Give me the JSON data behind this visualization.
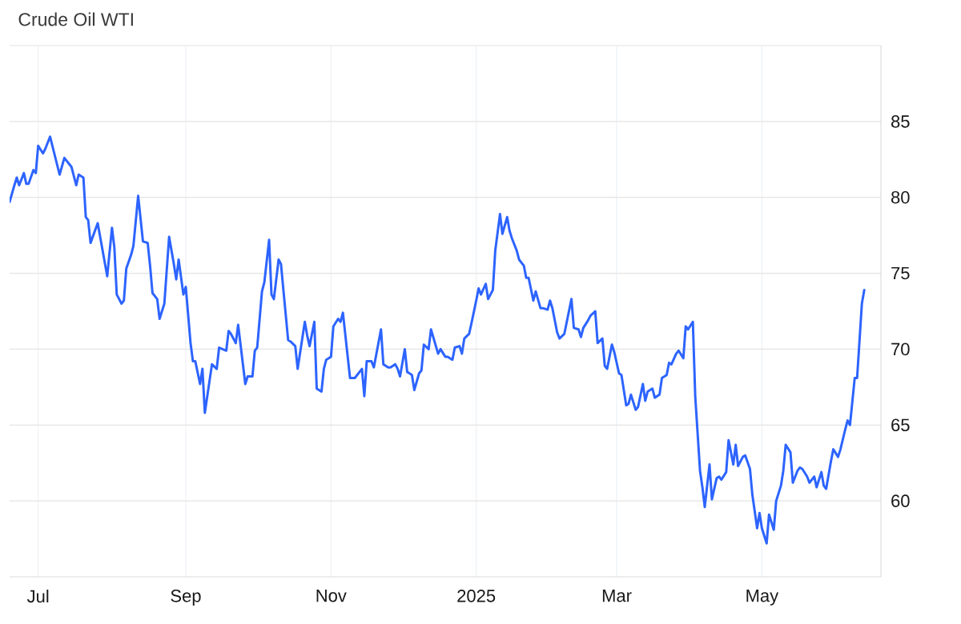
{
  "chart_data": {
    "type": "line",
    "title": "Crude Oil WTI",
    "x": [
      "2024-06-19",
      "2024-06-21",
      "2024-06-22",
      "2024-06-23",
      "2024-06-25",
      "2024-06-26",
      "2024-06-27",
      "2024-06-29",
      "2024-06-30",
      "2024-07-01",
      "2024-07-03",
      "2024-07-04",
      "2024-07-06",
      "2024-07-10",
      "2024-07-12",
      "2024-07-15",
      "2024-07-17",
      "2024-07-18",
      "2024-07-20",
      "2024-07-21",
      "2024-07-22",
      "2024-07-23",
      "2024-07-26",
      "2024-07-30",
      "2024-08-01",
      "2024-08-02",
      "2024-08-03",
      "2024-08-05",
      "2024-08-06",
      "2024-08-07",
      "2024-08-09",
      "2024-08-10",
      "2024-08-12",
      "2024-08-14",
      "2024-08-16",
      "2024-08-17",
      "2024-08-18",
      "2024-08-20",
      "2024-08-21",
      "2024-08-23",
      "2024-08-25",
      "2024-08-27",
      "2024-08-28",
      "2024-08-29",
      "2024-08-31",
      "2024-09-01",
      "2024-09-03",
      "2024-09-04",
      "2024-09-05",
      "2024-09-07",
      "2024-09-08",
      "2024-09-09",
      "2024-09-12",
      "2024-09-14",
      "2024-09-15",
      "2024-09-18",
      "2024-09-19",
      "2024-09-20",
      "2024-09-22",
      "2024-09-23",
      "2024-09-26",
      "2024-09-27",
      "2024-09-29",
      "2024-09-30",
      "2024-10-01",
      "2024-10-03",
      "2024-10-04",
      "2024-10-06",
      "2024-10-07",
      "2024-10-08",
      "2024-10-10",
      "2024-10-11",
      "2024-10-12",
      "2024-10-14",
      "2024-10-15",
      "2024-10-17",
      "2024-10-18",
      "2024-10-21",
      "2024-10-22",
      "2024-10-23",
      "2024-10-25",
      "2024-10-26",
      "2024-10-28",
      "2024-10-29",
      "2024-10-30",
      "2024-11-01",
      "2024-11-02",
      "2024-11-04",
      "2024-11-05",
      "2024-11-06",
      "2024-11-09",
      "2024-11-11",
      "2024-11-14",
      "2024-11-15",
      "2024-11-16",
      "2024-11-18",
      "2024-11-19",
      "2024-11-22",
      "2024-11-23",
      "2024-11-25",
      "2024-11-26",
      "2024-11-28",
      "2024-11-29",
      "2024-11-30",
      "2024-12-02",
      "2024-12-03",
      "2024-12-05",
      "2024-12-06",
      "2024-12-08",
      "2024-12-09",
      "2024-12-10",
      "2024-12-12",
      "2024-12-13",
      "2024-12-16",
      "2024-12-17",
      "2024-12-19",
      "2024-12-20",
      "2024-12-22",
      "2024-12-23",
      "2024-12-25",
      "2024-12-26",
      "2024-12-27",
      "2024-12-29",
      "2024-12-30",
      "2025-01-01",
      "2025-01-02",
      "2025-01-03",
      "2025-01-05",
      "2025-01-06",
      "2025-01-08",
      "2025-01-09",
      "2025-01-11",
      "2025-01-12",
      "2025-01-14",
      "2025-01-15",
      "2025-01-16",
      "2025-01-18",
      "2025-01-19",
      "2025-01-21",
      "2025-01-22",
      "2025-01-23",
      "2025-01-25",
      "2025-01-26",
      "2025-01-28",
      "2025-01-29",
      "2025-01-31",
      "2025-02-01",
      "2025-02-02",
      "2025-02-04",
      "2025-02-05",
      "2025-02-07",
      "2025-02-10",
      "2025-02-11",
      "2025-02-13",
      "2025-02-14",
      "2025-02-15",
      "2025-02-17",
      "2025-02-18",
      "2025-02-20",
      "2025-02-21",
      "2025-02-23",
      "2025-02-24",
      "2025-02-25",
      "2025-02-27",
      "2025-02-28",
      "2025-03-02",
      "2025-03-03",
      "2025-03-05",
      "2025-03-06",
      "2025-03-07",
      "2025-03-09",
      "2025-03-10",
      "2025-03-12",
      "2025-03-13",
      "2025-03-14",
      "2025-03-16",
      "2025-03-17",
      "2025-03-19",
      "2025-03-20",
      "2025-03-22",
      "2025-03-23",
      "2025-03-24",
      "2025-03-26",
      "2025-03-27",
      "2025-03-29",
      "2025-03-30",
      "2025-03-31",
      "2025-04-02",
      "2025-04-03",
      "2025-04-05",
      "2025-04-06",
      "2025-04-07",
      "2025-04-09",
      "2025-04-10",
      "2025-04-12",
      "2025-04-13",
      "2025-04-14",
      "2025-04-16",
      "2025-04-17",
      "2025-04-19",
      "2025-04-20",
      "2025-04-21",
      "2025-04-23",
      "2025-04-24",
      "2025-04-26",
      "2025-04-27",
      "2025-04-29",
      "2025-04-30",
      "2025-05-01",
      "2025-05-03",
      "2025-05-04",
      "2025-05-06",
      "2025-05-07",
      "2025-05-09",
      "2025-05-10",
      "2025-05-11",
      "2025-05-13",
      "2025-05-14",
      "2025-05-16",
      "2025-05-17",
      "2025-05-18",
      "2025-05-20",
      "2025-05-21",
      "2025-05-23",
      "2025-05-24",
      "2025-05-26",
      "2025-05-27",
      "2025-05-28",
      "2025-05-30",
      "2025-05-31",
      "2025-06-02",
      "2025-06-03",
      "2025-06-05",
      "2025-06-06",
      "2025-06-07",
      "2025-06-09",
      "2025-06-10",
      "2025-06-12",
      "2025-06-13"
    ],
    "series": [
      {
        "color": "#2d64ff",
        "values": [
          79.7,
          80.8,
          81.3,
          80.8,
          81.6,
          80.9,
          80.9,
          81.8,
          81.6,
          83.4,
          82.9,
          83.2,
          84.0,
          81.5,
          82.6,
          82.0,
          80.8,
          81.5,
          81.3,
          78.7,
          78.5,
          77.0,
          78.3,
          74.8,
          78.0,
          76.7,
          73.6,
          73.0,
          73.2,
          75.3,
          76.2,
          76.8,
          80.1,
          77.1,
          77.0,
          75.5,
          73.7,
          73.3,
          72.0,
          73.0,
          77.4,
          75.6,
          74.6,
          75.9,
          73.6,
          74.1,
          70.4,
          69.2,
          69.2,
          67.7,
          68.7,
          65.8,
          69.0,
          68.7,
          70.1,
          69.9,
          71.2,
          71.0,
          70.4,
          71.6,
          67.7,
          68.2,
          68.2,
          69.9,
          70.1,
          73.8,
          74.4,
          77.2,
          73.6,
          73.3,
          75.9,
          75.6,
          73.9,
          70.6,
          70.5,
          70.2,
          68.7,
          71.8,
          70.9,
          70.2,
          71.8,
          67.4,
          67.2,
          68.7,
          69.3,
          69.5,
          71.5,
          72.0,
          71.8,
          72.4,
          68.1,
          68.1,
          68.7,
          66.9,
          69.2,
          69.2,
          68.8,
          71.3,
          69.0,
          68.8,
          68.8,
          69.0,
          68.7,
          68.2,
          70.0,
          68.5,
          68.3,
          67.3,
          68.4,
          68.6,
          70.3,
          70.0,
          71.3,
          69.7,
          70.0,
          69.5,
          69.5,
          69.3,
          70.1,
          70.2,
          69.7,
          70.7,
          71.0,
          71.7,
          73.2,
          74.0,
          73.6,
          74.3,
          73.3,
          73.9,
          76.5,
          78.9,
          77.6,
          78.7,
          77.8,
          77.3,
          76.5,
          75.9,
          75.5,
          74.7,
          74.7,
          73.2,
          73.8,
          72.7,
          72.7,
          72.6,
          73.2,
          72.7,
          71.1,
          70.7,
          71.0,
          73.3,
          71.4,
          71.3,
          70.8,
          71.4,
          71.9,
          72.2,
          72.5,
          70.4,
          70.7,
          68.9,
          68.7,
          70.3,
          69.8,
          68.4,
          68.3,
          66.3,
          66.4,
          67.0,
          66.0,
          66.2,
          67.7,
          66.6,
          67.2,
          67.4,
          66.8,
          67.0,
          68.1,
          68.3,
          69.1,
          69.0,
          69.7,
          69.9,
          69.4,
          71.5,
          71.3,
          71.8,
          66.9,
          62.0,
          60.9,
          59.6,
          62.4,
          60.1,
          61.5,
          61.6,
          61.4,
          61.9,
          64.0,
          62.4,
          63.7,
          62.3,
          62.9,
          63.0,
          62.1,
          60.4,
          58.2,
          59.2,
          58.2,
          57.2,
          59.1,
          58.1,
          60.0,
          61.0,
          62.0,
          63.7,
          63.2,
          61.2,
          62.0,
          62.2,
          62.1,
          61.6,
          61.2,
          61.6,
          60.9,
          61.9,
          61.0,
          60.8,
          62.6,
          63.4,
          62.9,
          63.4,
          64.7,
          65.3,
          65.0,
          68.1,
          68.1,
          73.0,
          73.9
        ]
      }
    ],
    "xlim": [
      "2024-06-19",
      "2025-06-20"
    ],
    "xticks": [
      {
        "value": "2024-07-01",
        "label": "Jul"
      },
      {
        "value": "2024-09-01",
        "label": "Sep"
      },
      {
        "value": "2024-11-01",
        "label": "Nov"
      },
      {
        "value": "2025-01-01",
        "label": "2025"
      },
      {
        "value": "2025-03-01",
        "label": "Mar"
      },
      {
        "value": "2025-05-01",
        "label": "May"
      }
    ],
    "ylim": [
      55,
      90
    ],
    "yticks": [
      60,
      65,
      70,
      75,
      80,
      85,
      {
        "value": 90,
        "label": null
      }
    ],
    "grid": true,
    "line_style": "solid"
  }
}
